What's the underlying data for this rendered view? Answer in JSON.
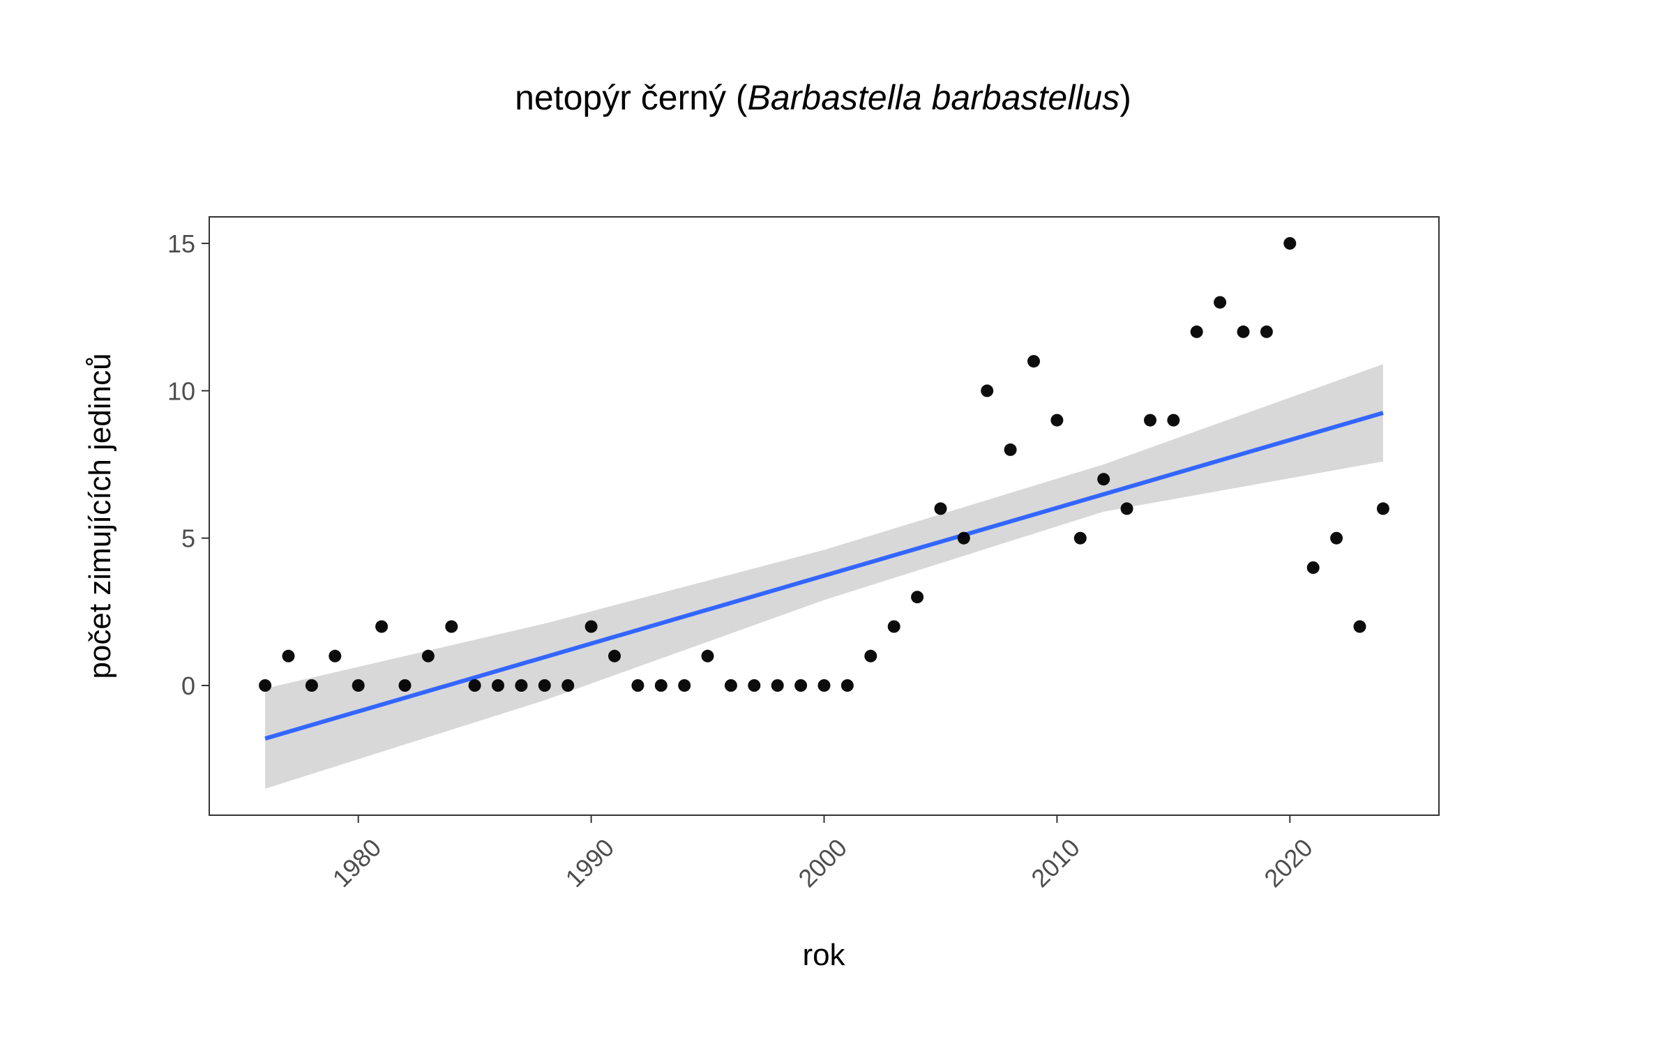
{
  "chart_data": {
    "type": "scatter",
    "title": {
      "prefix": "netopýr černý (",
      "species": "Barbastella barbastellus",
      "suffix": ")"
    },
    "xlabel": "rok",
    "ylabel": "počet zimujících jedinců",
    "xlim": [
      1973.6,
      2026.4
    ],
    "ylim": [
      -4.4,
      15.9
    ],
    "x_ticks": [
      1980,
      1990,
      2000,
      2010,
      2020
    ],
    "y_ticks": [
      0,
      5,
      10,
      15
    ],
    "x_tick_labels": [
      "1980",
      "1990",
      "2000",
      "2010",
      "2020"
    ],
    "y_tick_labels": [
      "0",
      "5",
      "10",
      "15"
    ],
    "grid": false,
    "series": [
      {
        "x": [
          1976,
          1977,
          1978,
          1979,
          1980,
          1981,
          1982,
          1983,
          1984,
          1985,
          1986,
          1987,
          1988,
          1989,
          1990,
          1991,
          1992,
          1993,
          1994,
          1995,
          1996,
          1997,
          1998,
          1999,
          2000,
          2001,
          2002,
          2003,
          2004,
          2005,
          2006,
          2007,
          2008,
          2009,
          2010,
          2011,
          2012,
          2013,
          2014,
          2015,
          2016,
          2017,
          2018,
          2019,
          2020,
          2021,
          2022,
          2023,
          2024
        ],
        "y": [
          0,
          1,
          0,
          1,
          0,
          2,
          0,
          1,
          2,
          0,
          0,
          0,
          0,
          0,
          2,
          1,
          0,
          0,
          0,
          1,
          0,
          0,
          0,
          0,
          0,
          0,
          1,
          2,
          3,
          6,
          5,
          10,
          8,
          11,
          9,
          5,
          7,
          6,
          9,
          9,
          12,
          13,
          12,
          12,
          15,
          4,
          5,
          2,
          6
        ]
      }
    ],
    "trend": {
      "method": "linear",
      "x": [
        1976,
        2024
      ],
      "y": [
        -1.8,
        9.25
      ],
      "ci_x": [
        1976,
        1988,
        2000,
        2012,
        2024
      ],
      "ci_lower": [
        -3.5,
        -0.5,
        2.9,
        5.9,
        7.6
      ],
      "ci_upper": [
        -0.1,
        2.1,
        4.6,
        7.5,
        10.9
      ]
    },
    "colors": {
      "points": "#000000",
      "trend_line": "#3366ff",
      "ci_band": "#d6d6d6",
      "panel_border": "#333333",
      "tick_text": "#4d4d4d"
    }
  }
}
